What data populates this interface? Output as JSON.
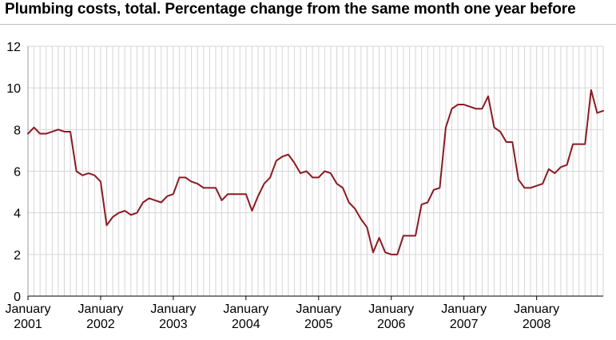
{
  "title": "Plumbing costs, total. Percentage change from the same month one year before",
  "chart_data": {
    "type": "line",
    "title": "Plumbing costs, total. Percentage change from the same month one year before",
    "xlabel": "",
    "ylabel": "",
    "ylim": [
      0,
      12
    ],
    "yticks": [
      0,
      2,
      4,
      6,
      8,
      10,
      12
    ],
    "grid": "vertical monthly gridlines; horizontal gridlines at each y tick",
    "x_start": "2001-01",
    "x_end": "2008-12",
    "x_labels": [
      {
        "month": "January",
        "year": "2001"
      },
      {
        "month": "January",
        "year": "2002"
      },
      {
        "month": "January",
        "year": "2003"
      },
      {
        "month": "January",
        "year": "2004"
      },
      {
        "month": "January",
        "year": "2005"
      },
      {
        "month": "January",
        "year": "2006"
      },
      {
        "month": "January",
        "year": "2007"
      },
      {
        "month": "January",
        "year": "2008"
      }
    ],
    "line_color": "#8b1a22",
    "series": [
      {
        "values": [
          7.8,
          8.1,
          7.8,
          7.8,
          7.9,
          8.0,
          7.9,
          7.9,
          6.0,
          5.8,
          5.9,
          5.8,
          5.5,
          3.4,
          3.8,
          4.0,
          4.1,
          3.9,
          4.0,
          4.5,
          4.7,
          4.6,
          4.5,
          4.8,
          4.9,
          5.7,
          5.7,
          5.5,
          5.4,
          5.2,
          5.2,
          5.2,
          4.6,
          4.9,
          4.9,
          4.9,
          4.9,
          4.1,
          4.8,
          5.4,
          5.7,
          6.5,
          6.7,
          6.8,
          6.4,
          5.9,
          6.0,
          5.7,
          5.7,
          6.0,
          5.9,
          5.4,
          5.2,
          4.5,
          4.2,
          3.7,
          3.3,
          2.1,
          2.8,
          2.1,
          2.0,
          2.0,
          2.9,
          2.9,
          2.9,
          4.4,
          4.5,
          5.1,
          5.2,
          8.1,
          9.0,
          9.2,
          9.2,
          9.1,
          9.0,
          9.0,
          9.6,
          8.1,
          7.9,
          7.4,
          7.4,
          5.6,
          5.2,
          5.2,
          5.3,
          5.4,
          6.1,
          5.9,
          6.2,
          6.3,
          7.3,
          7.3,
          7.3,
          9.9,
          8.8,
          8.9
        ]
      }
    ]
  }
}
